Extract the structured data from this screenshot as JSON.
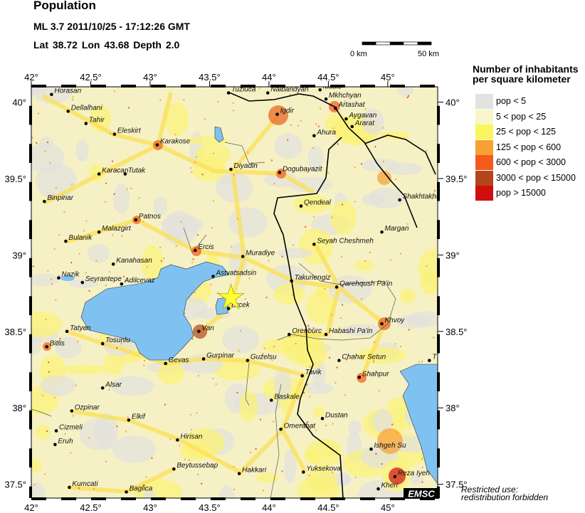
{
  "header": {
    "title": "Population",
    "event": "ML 3.7  2011/10/25 - 17:12:26 GMT",
    "coords": "Lat 38.72    Lon  43.68    Depth  2.0"
  },
  "scale_bar": {
    "start_label": "0 km",
    "end_label": "50 km"
  },
  "legend": {
    "title_line1": "Number of inhabitants",
    "title_line2": "per square kilometer",
    "items": [
      {
        "label": "pop < 5",
        "color": "#e2e2e0"
      },
      {
        "label": "5 < pop < 25",
        "color": "#f8f6c8"
      },
      {
        "label": "25 < pop < 125",
        "color": "#fbf55e"
      },
      {
        "label": "125 < pop < 600",
        "color": "#f7a033"
      },
      {
        "label": "600 < pop < 3000",
        "color": "#f45a1a"
      },
      {
        "label": "3000 < pop < 15000",
        "color": "#b3451a"
      },
      {
        "label": "pop > 15000",
        "color": "#d10e0e"
      }
    ]
  },
  "map": {
    "lon_range": [
      42.0,
      45.42
    ],
    "lat_range": [
      37.41,
      40.1
    ],
    "lon_ticks": [
      "42°",
      "42.5°",
      "43°",
      "43.5°",
      "44°",
      "44.5°",
      "45°"
    ],
    "lat_ticks": [
      "40°",
      "39.5°",
      "39°",
      "38.5°",
      "38°",
      "37.5°"
    ],
    "water_color": "#7fc2f2",
    "epicenter": {
      "lat": 38.72,
      "lon": 43.68,
      "color": "#ffff33",
      "icon": "star-icon"
    },
    "cities": [
      {
        "name": "Horasan",
        "lon": 42.17,
        "lat": 40.05
      },
      {
        "name": "Dellalhani",
        "lon": 42.31,
        "lat": 39.94
      },
      {
        "name": "Tahir",
        "lon": 42.46,
        "lat": 39.86
      },
      {
        "name": "Eleskirt",
        "lon": 42.7,
        "lat": 39.79
      },
      {
        "name": "Karakose",
        "lon": 43.06,
        "lat": 39.72
      },
      {
        "name": "Karacan",
        "lon": 42.57,
        "lat": 39.53
      },
      {
        "name": "Tutak",
        "lon": 42.79,
        "lat": 39.53
      },
      {
        "name": "Binpinar",
        "lon": 42.11,
        "lat": 39.35
      },
      {
        "name": "Patnos",
        "lon": 42.88,
        "lat": 39.23
      },
      {
        "name": "Bulanik",
        "lon": 42.29,
        "lat": 39.09
      },
      {
        "name": "Malazgirt",
        "lon": 42.57,
        "lat": 39.15
      },
      {
        "name": "Kanahasan",
        "lon": 42.69,
        "lat": 38.94
      },
      {
        "name": "Ercis",
        "lon": 43.38,
        "lat": 39.03
      },
      {
        "name": "Muradiye",
        "lon": 43.78,
        "lat": 38.99
      },
      {
        "name": "Nazik",
        "lon": 42.23,
        "lat": 38.85
      },
      {
        "name": "Seyrantepe",
        "lon": 42.43,
        "lat": 38.82
      },
      {
        "name": "Adilcevaz",
        "lon": 42.76,
        "lat": 38.81
      },
      {
        "name": "Astvatsadsin",
        "lon": 43.53,
        "lat": 38.86
      },
      {
        "name": "Ercek",
        "lon": 43.66,
        "lat": 38.65
      },
      {
        "name": "Van",
        "lon": 43.41,
        "lat": 38.5
      },
      {
        "name": "Tatyan",
        "lon": 42.3,
        "lat": 38.5
      },
      {
        "name": "Tosunlu",
        "lon": 42.6,
        "lat": 38.42
      },
      {
        "name": "Bitlis",
        "lon": 42.13,
        "lat": 38.4
      },
      {
        "name": "Gevas",
        "lon": 43.13,
        "lat": 38.29
      },
      {
        "name": "Gurpinar",
        "lon": 43.45,
        "lat": 38.32
      },
      {
        "name": "Guzelsu",
        "lon": 43.82,
        "lat": 38.31
      },
      {
        "name": "Tuzluca",
        "lon": 43.66,
        "lat": 40.06
      },
      {
        "name": "Nalbandyan",
        "lon": 43.99,
        "lat": 40.06
      },
      {
        "name": "Masis",
        "lon": 44.43,
        "lat": 40.08
      },
      {
        "name": "Mkhchyan",
        "lon": 44.48,
        "lat": 40.02
      },
      {
        "name": "Artashat",
        "lon": 44.56,
        "lat": 39.96
      },
      {
        "name": "Aygavan",
        "lon": 44.65,
        "lat": 39.89
      },
      {
        "name": "Ararat",
        "lon": 44.7,
        "lat": 39.84
      },
      {
        "name": "Igdir",
        "lon": 44.07,
        "lat": 39.92
      },
      {
        "name": "Ahura",
        "lon": 44.38,
        "lat": 39.78
      },
      {
        "name": "Diyadin",
        "lon": 43.68,
        "lat": 39.56
      },
      {
        "name": "Dogubayazit",
        "lon": 44.09,
        "lat": 39.54
      },
      {
        "name": "Qendeal",
        "lon": 44.27,
        "lat": 39.32
      },
      {
        "name": "Shakhtakht",
        "lon": 45.1,
        "lat": 39.36
      },
      {
        "name": "Margan",
        "lon": 44.95,
        "lat": 39.15
      },
      {
        "name": "Seyah Cheshmeh",
        "lon": 44.38,
        "lat": 39.07
      },
      {
        "name": "Takuriengiz",
        "lon": 44.19,
        "lat": 38.83
      },
      {
        "name": "Qarehqush Pa'in",
        "lon": 44.57,
        "lat": 38.79
      },
      {
        "name": "Khvoy",
        "lon": 44.95,
        "lat": 38.55
      },
      {
        "name": "Orenburc",
        "lon": 44.17,
        "lat": 38.48
      },
      {
        "name": "Habashi Pa'in",
        "lon": 44.48,
        "lat": 38.48
      },
      {
        "name": "Chahar Setun",
        "lon": 44.59,
        "lat": 38.31
      },
      {
        "name": "T",
        "lon": 45.35,
        "lat": 38.31
      },
      {
        "name": "Tavik",
        "lon": 44.28,
        "lat": 38.21
      },
      {
        "name": "Shahpur",
        "lon": 44.76,
        "lat": 38.2
      },
      {
        "name": "Alsar",
        "lon": 42.6,
        "lat": 38.13
      },
      {
        "name": "Ozpinar",
        "lon": 42.34,
        "lat": 37.98
      },
      {
        "name": "Elkif",
        "lon": 42.82,
        "lat": 37.92
      },
      {
        "name": "Cizmeli",
        "lon": 42.21,
        "lat": 37.85
      },
      {
        "name": "Eruh",
        "lon": 42.2,
        "lat": 37.76
      },
      {
        "name": "Hirisan",
        "lon": 43.23,
        "lat": 37.79
      },
      {
        "name": "Baskale",
        "lon": 44.02,
        "lat": 38.05
      },
      {
        "name": "Dustan",
        "lon": 44.45,
        "lat": 37.93
      },
      {
        "name": "Omerabat",
        "lon": 44.1,
        "lat": 37.86
      },
      {
        "name": "Ishgeh Su",
        "lon": 44.86,
        "lat": 37.73
      },
      {
        "name": "Beytussebap",
        "lon": 43.2,
        "lat": 37.6
      },
      {
        "name": "Hakkari",
        "lon": 43.75,
        "lat": 37.57
      },
      {
        "name": "Yuksekova",
        "lon": 44.29,
        "lat": 37.58
      },
      {
        "name": "Reza Iyeh",
        "lon": 45.06,
        "lat": 37.55
      },
      {
        "name": "Kumcati",
        "lon": 42.32,
        "lat": 37.48
      },
      {
        "name": "Baglica",
        "lon": 42.8,
        "lat": 37.45
      },
      {
        "name": "Kheri",
        "lon": 44.92,
        "lat": 37.47
      }
    ]
  },
  "logo": "EMSC",
  "footer": {
    "line1": "Restricted use:",
    "line2": "redistribution forbidden"
  }
}
